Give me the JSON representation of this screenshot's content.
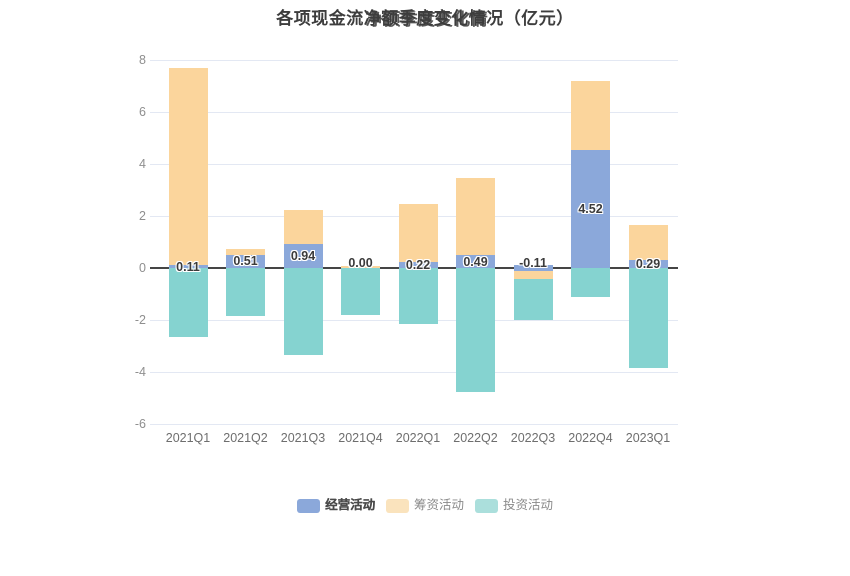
{
  "title": {
    "full": "各项现金流净额季度变化情况（亿元）",
    "pre": "各项现金流",
    "mid": "净额季度变化情",
    "post": "况（亿元）"
  },
  "chart_data": {
    "type": "bar",
    "stacked": true,
    "title": "各项现金流净额季度变化情况（亿元）",
    "unit": "亿元",
    "categories": [
      "2021Q1",
      "2021Q2",
      "2021Q3",
      "2021Q4",
      "2022Q1",
      "2022Q2",
      "2022Q3",
      "2022Q4",
      "2023Q1"
    ],
    "series": [
      {
        "name": "经营活动",
        "color": "#8BA8DA",
        "values": [
          0.11,
          0.51,
          0.94,
          0.0,
          0.22,
          0.49,
          -0.11,
          4.52,
          0.29
        ],
        "labels": [
          "0.11",
          "0.51",
          "0.94",
          "0.00",
          "0.22",
          "0.49",
          "-0.11",
          "4.52",
          "0.29"
        ],
        "labels_shown": true
      },
      {
        "name": "筹资活动",
        "color": "#FBD59C",
        "values": [
          7.59,
          0.21,
          1.3,
          0.06,
          2.25,
          2.96,
          -0.3,
          2.68,
          1.36
        ],
        "labels_shown": false
      },
      {
        "name": "投资活动",
        "color": "#85D3D0",
        "values": [
          -2.65,
          -1.84,
          -3.35,
          -1.8,
          -2.15,
          -4.78,
          -1.6,
          -1.12,
          -3.83
        ],
        "labels_shown": false
      }
    ],
    "ylim": [
      -6,
      8
    ],
    "ytick_step": 2,
    "y_ticks": [
      "8",
      "6",
      "4",
      "2",
      "0",
      "-2",
      "-4",
      "-6"
    ],
    "grid": "horizontal",
    "legend_position": "bottom"
  },
  "legend": {
    "items": [
      {
        "label": "经营活动",
        "swatch_color": "#8BA8DA",
        "text_color": "#4a4a4a",
        "bold": true
      },
      {
        "label": "筹资活动",
        "swatch_color": "#FAE3BD",
        "text_color": "#8a8a8a",
        "bold": false
      },
      {
        "label": "投资活动",
        "swatch_color": "#ABDFDC",
        "text_color": "#8a8a8a",
        "bold": false
      }
    ]
  },
  "colors": {
    "background": "#ffffff",
    "grid_line": "#e3e8f3",
    "zero_line": "#454545",
    "y_tick_label": "#8f8f8f",
    "x_tick_label": "#6e6e6e",
    "data_label": "#3b3b3b",
    "title": "#3d3d3d"
  }
}
